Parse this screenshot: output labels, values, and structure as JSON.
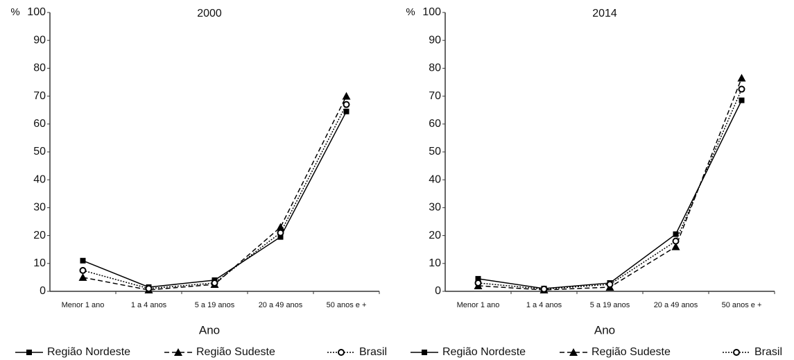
{
  "chart_data": [
    {
      "type": "line",
      "title": "2000",
      "y_label": "%",
      "x_label": "Ano",
      "categories": [
        "Menor 1 ano",
        "1 a 4 anos",
        "5 a 19 anos",
        "20 a 49 anos",
        "50 anos e +"
      ],
      "series": [
        {
          "name": "Região Nordeste",
          "color": "#000000",
          "marker": "square",
          "linestyle": "solid",
          "values": [
            11,
            1.5,
            4,
            19.5,
            64.5
          ]
        },
        {
          "name": "Região Sudeste",
          "color": "#000000",
          "marker": "triangle",
          "linestyle": "dashed",
          "values": [
            5,
            0.5,
            2.5,
            23,
            70
          ]
        },
        {
          "name": "Brasil",
          "color": "#000000",
          "marker": "open-circle",
          "linestyle": "dotted",
          "values": [
            7.5,
            1,
            3,
            21,
            67
          ]
        }
      ],
      "ylim": [
        0,
        100
      ],
      "yticks": [
        0,
        10,
        20,
        30,
        40,
        50,
        60,
        70,
        80,
        90,
        100
      ],
      "grid": false,
      "legend": "bottom"
    },
    {
      "type": "line",
      "title": "2014",
      "y_label": "%",
      "x_label": "Ano",
      "categories": [
        "Menor 1 ano",
        "1 a 4 anos",
        "5 a 19 anos",
        "20 a 49 anos",
        "50 anos e +"
      ],
      "series": [
        {
          "name": "Região Nordeste",
          "color": "#000000",
          "marker": "square",
          "linestyle": "solid",
          "values": [
            4.5,
            1,
            3,
            20.5,
            68.5
          ]
        },
        {
          "name": "Região Sudeste",
          "color": "#000000",
          "marker": "triangle",
          "linestyle": "dashed",
          "values": [
            2,
            0.5,
            1.5,
            16,
            76.5
          ]
        },
        {
          "name": "Brasil",
          "color": "#000000",
          "marker": "open-circle",
          "linestyle": "dotted",
          "values": [
            3,
            0.8,
            2.5,
            18,
            72.5
          ]
        }
      ],
      "ylim": [
        0,
        100
      ],
      "yticks": [
        0,
        10,
        20,
        30,
        40,
        50,
        60,
        70,
        80,
        90,
        100
      ],
      "grid": false,
      "legend": "bottom"
    }
  ]
}
